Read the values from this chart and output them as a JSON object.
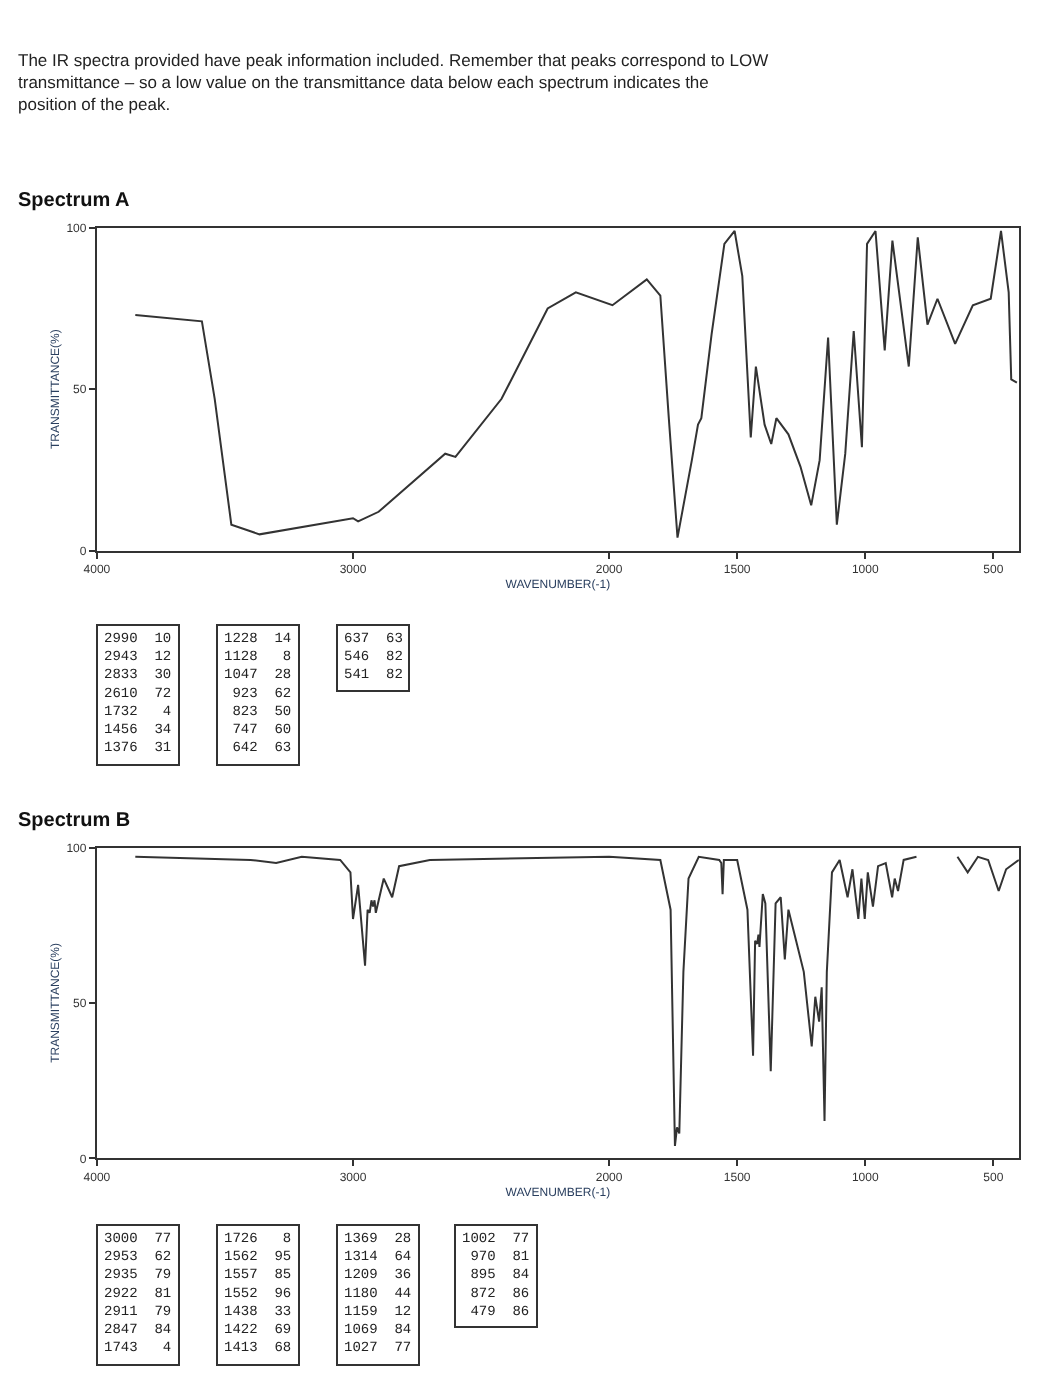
{
  "chart_data": [
    {
      "type": "other",
      "annotations": [
        "The IR spectra provided have peak information included. Remember that peaks correspond to LOW transmittance – so a low value on the transmittance data below each spectrum indicates the position of the peak."
      ]
    },
    {
      "type": "line",
      "title": "Spectrum A",
      "xlabel": "WAVENUMBER(-1)",
      "ylabel": "TRANSMITTANCE(%)",
      "x": [
        3850,
        3590,
        3540,
        3475,
        3365,
        3000,
        2980,
        2900,
        2640,
        2600,
        2420,
        2240,
        2130,
        1987,
        1853,
        1800,
        1767,
        1733,
        1677,
        1653,
        1640,
        1600,
        1550,
        1510,
        1480,
        1447,
        1427,
        1393,
        1367,
        1347,
        1300,
        1253,
        1211,
        1178,
        1145,
        1111,
        1078,
        1045,
        1013,
        993,
        960,
        924,
        894,
        830,
        795,
        757,
        718,
        649,
        580,
        510,
        470,
        440,
        430,
        408
      ],
      "series": [
        {
          "color": "#333333",
          "values": [
            73,
            71,
            47,
            8,
            5,
            10,
            9,
            12,
            30,
            29,
            47,
            75,
            80,
            76,
            84,
            79,
            41,
            4,
            28,
            39,
            41,
            67,
            95,
            99,
            85,
            35,
            57,
            39,
            33,
            41,
            36,
            26,
            14,
            28,
            66,
            8,
            30,
            68,
            32,
            95,
            99,
            62,
            96,
            57,
            97,
            70,
            78,
            64,
            76,
            78,
            99,
            80,
            53,
            52
          ]
        }
      ],
      "xlim": [
        4000,
        400
      ],
      "xticks": [
        4000,
        3000,
        2000,
        1500,
        1000,
        500
      ],
      "ylim": [
        0,
        100
      ],
      "yticks": [
        0,
        50,
        100
      ],
      "annotations": [
        "2990  10\n2943  12\n2833  30\n2610  72\n1732   4\n1456  34\n1376  31",
        "1228  14\n1128   8\n1047  28\n 923  62\n 823  50\n 747  60\n 642  63",
        "637  63\n546  82\n541  82"
      ]
    },
    {
      "type": "line",
      "title": "Spectrum B",
      "xlabel": "WAVENUMBER(-1)",
      "ylabel": "TRANSMITTANCE(%)",
      "x": [
        3850,
        3400,
        3300,
        3200,
        3050,
        3010,
        3000,
        2980,
        2953,
        2943,
        2935,
        2928,
        2922,
        2916,
        2911,
        2880,
        2847,
        2820,
        2700,
        2000,
        1800,
        1760,
        1743,
        1735,
        1726,
        1710,
        1690,
        1650,
        1570,
        1562,
        1557,
        1552,
        1500,
        1460,
        1438,
        1430,
        1422,
        1417,
        1413,
        1400,
        1390,
        1369,
        1350,
        1330,
        1314,
        1300,
        1270,
        1240,
        1209,
        1195,
        1180,
        1170,
        1159,
        1150,
        1130,
        1100,
        1069,
        1050,
        1027,
        1015,
        1002,
        990,
        970,
        950,
        920,
        895,
        885,
        872,
        850,
        800,
        700,
        640,
        600,
        560,
        520,
        479,
        450,
        400
      ],
      "series": [
        {
          "color": "#333333",
          "values": [
            97,
            96,
            95,
            97,
            96,
            92,
            77,
            88,
            62,
            80,
            79,
            83,
            81,
            83,
            79,
            90,
            84,
            94,
            96,
            97,
            96,
            80,
            4,
            10,
            8,
            60,
            90,
            97,
            96,
            95,
            85,
            96,
            96,
            80,
            33,
            70,
            69,
            72,
            68,
            85,
            82,
            28,
            82,
            84,
            64,
            80,
            70,
            60,
            36,
            52,
            44,
            55,
            12,
            60,
            92,
            96,
            84,
            93,
            77,
            90,
            77,
            92,
            81,
            94,
            95,
            84,
            90,
            86,
            96,
            97,
            null,
            97,
            92,
            97,
            96,
            86,
            93,
            96
          ]
        }
      ],
      "xlim": [
        4000,
        400
      ],
      "xticks": [
        4000,
        3000,
        2000,
        1500,
        1000,
        500
      ],
      "ylim": [
        0,
        100
      ],
      "yticks": [
        0,
        50,
        100
      ],
      "annotations": [
        "3000  77\n2953  62\n2935  79\n2922  81\n2911  79\n2847  84\n1743   4",
        "1726   8\n1562  95\n1557  85\n1552  96\n1438  33\n1422  69\n1413  68",
        "1369  28\n1314  64\n1209  36\n1180  44\n1159  12\n1069  84\n1027  77",
        "1002  77\n 970  81\n 895  84\n 872  86\n 479  86"
      ]
    }
  ]
}
